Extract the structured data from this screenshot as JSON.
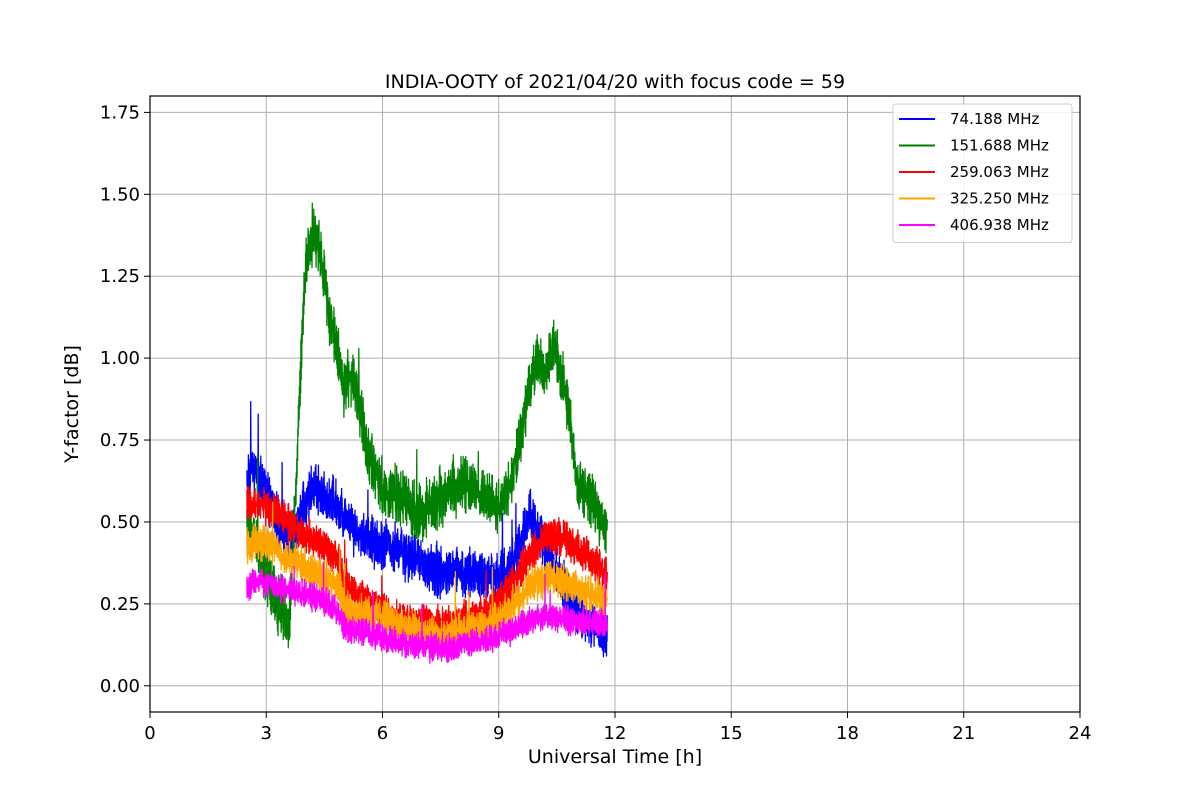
{
  "chart_data": {
    "type": "line",
    "title": "INDIA-OOTY of 2021/04/20 with focus code = 59",
    "xlabel": "Universal Time [h]",
    "ylabel": "Y-factor [dB]",
    "xlim": [
      0,
      24
    ],
    "ylim": [
      -0.08,
      1.8
    ],
    "xticks": [
      0,
      3,
      6,
      9,
      12,
      15,
      18,
      21,
      24
    ],
    "yticks": [
      0.0,
      0.25,
      0.5,
      0.75,
      1.0,
      1.25,
      1.5,
      1.75
    ],
    "ytick_labels": [
      "0.00",
      "0.25",
      "0.50",
      "0.75",
      "1.00",
      "1.25",
      "1.50",
      "1.75"
    ],
    "grid": true,
    "legend_position": "top-right",
    "series": [
      {
        "name": "  74.188 MHz",
        "color": "#0000ff",
        "noise": 0.07,
        "x": [
          2.5,
          2.7,
          3.0,
          3.3,
          3.6,
          3.9,
          4.2,
          4.5,
          4.8,
          5.0,
          5.2,
          5.5,
          5.8,
          6.0,
          6.3,
          6.6,
          6.9,
          7.2,
          7.5,
          7.8,
          8.1,
          8.4,
          8.7,
          9.0,
          9.2,
          9.5,
          9.8,
          10.0,
          10.3,
          10.6,
          10.9,
          11.2,
          11.5,
          11.8
        ],
        "y": [
          0.62,
          0.66,
          0.6,
          0.5,
          0.45,
          0.52,
          0.6,
          0.58,
          0.55,
          0.52,
          0.48,
          0.45,
          0.44,
          0.43,
          0.42,
          0.4,
          0.38,
          0.36,
          0.35,
          0.35,
          0.34,
          0.34,
          0.33,
          0.33,
          0.34,
          0.4,
          0.52,
          0.48,
          0.4,
          0.32,
          0.25,
          0.2,
          0.18,
          0.16
        ]
      },
      {
        "name": "151.688 MHz",
        "color": "#008000",
        "noise": 0.08,
        "x": [
          2.5,
          2.8,
          3.0,
          3.3,
          3.6,
          3.8,
          4.0,
          4.2,
          4.4,
          4.6,
          4.8,
          5.0,
          5.2,
          5.4,
          5.6,
          5.8,
          6.0,
          6.3,
          6.6,
          6.9,
          7.2,
          7.5,
          7.8,
          8.1,
          8.4,
          8.7,
          9.0,
          9.3,
          9.5,
          9.8,
          10.0,
          10.2,
          10.4,
          10.6,
          10.8,
          11.0,
          11.3,
          11.6,
          11.8
        ],
        "y": [
          0.5,
          0.42,
          0.35,
          0.25,
          0.2,
          0.7,
          1.28,
          1.38,
          1.32,
          1.15,
          1.05,
          0.9,
          0.95,
          0.85,
          0.72,
          0.65,
          0.6,
          0.58,
          0.56,
          0.52,
          0.54,
          0.58,
          0.6,
          0.62,
          0.6,
          0.58,
          0.55,
          0.62,
          0.72,
          0.92,
          1.0,
          0.95,
          1.05,
          0.95,
          0.85,
          0.62,
          0.58,
          0.52,
          0.48
        ]
      },
      {
        "name": "259.063 MHz",
        "color": "#ff0000",
        "noise": 0.05,
        "x": [
          2.5,
          2.8,
          3.1,
          3.4,
          3.7,
          4.0,
          4.3,
          4.6,
          4.9,
          5.0,
          5.3,
          5.6,
          5.9,
          6.2,
          6.5,
          6.8,
          7.1,
          7.4,
          7.7,
          8.0,
          8.3,
          8.6,
          8.9,
          9.2,
          9.5,
          9.8,
          10.1,
          10.4,
          10.7,
          11.0,
          11.3,
          11.6,
          11.8
        ],
        "y": [
          0.55,
          0.56,
          0.54,
          0.52,
          0.48,
          0.46,
          0.44,
          0.42,
          0.38,
          0.3,
          0.28,
          0.26,
          0.24,
          0.22,
          0.2,
          0.19,
          0.2,
          0.19,
          0.18,
          0.2,
          0.21,
          0.22,
          0.24,
          0.28,
          0.34,
          0.4,
          0.44,
          0.46,
          0.45,
          0.42,
          0.4,
          0.36,
          0.33
        ]
      },
      {
        "name": "325.250 MHz",
        "color": "#ffa500",
        "noise": 0.05,
        "x": [
          2.5,
          2.8,
          3.1,
          3.4,
          3.7,
          4.0,
          4.3,
          4.6,
          4.9,
          5.0,
          5.3,
          5.6,
          5.9,
          6.2,
          6.5,
          6.8,
          7.1,
          7.4,
          7.7,
          8.0,
          8.3,
          8.6,
          8.9,
          9.2,
          9.5,
          9.8,
          10.1,
          10.4,
          10.7,
          11.0,
          11.3,
          11.6,
          11.8
        ],
        "y": [
          0.42,
          0.44,
          0.43,
          0.4,
          0.38,
          0.36,
          0.34,
          0.32,
          0.3,
          0.24,
          0.22,
          0.21,
          0.22,
          0.2,
          0.18,
          0.17,
          0.16,
          0.15,
          0.15,
          0.16,
          0.17,
          0.18,
          0.2,
          0.22,
          0.26,
          0.3,
          0.32,
          0.33,
          0.32,
          0.3,
          0.28,
          0.27,
          0.26
        ]
      },
      {
        "name": "406.938 MHz",
        "color": "#ff00ff",
        "noise": 0.04,
        "x": [
          2.5,
          2.8,
          3.1,
          3.4,
          3.7,
          4.0,
          4.3,
          4.6,
          4.9,
          5.0,
          5.3,
          5.6,
          5.9,
          6.2,
          6.5,
          6.8,
          7.1,
          7.4,
          7.7,
          8.0,
          8.3,
          8.6,
          8.9,
          9.2,
          9.5,
          9.8,
          10.1,
          10.4,
          10.7,
          11.0,
          11.3,
          11.6,
          11.8
        ],
        "y": [
          0.3,
          0.32,
          0.31,
          0.3,
          0.29,
          0.28,
          0.27,
          0.25,
          0.22,
          0.18,
          0.17,
          0.16,
          0.15,
          0.14,
          0.13,
          0.12,
          0.12,
          0.12,
          0.11,
          0.12,
          0.13,
          0.14,
          0.15,
          0.16,
          0.18,
          0.2,
          0.21,
          0.21,
          0.2,
          0.2,
          0.19,
          0.19,
          0.18
        ]
      }
    ]
  }
}
